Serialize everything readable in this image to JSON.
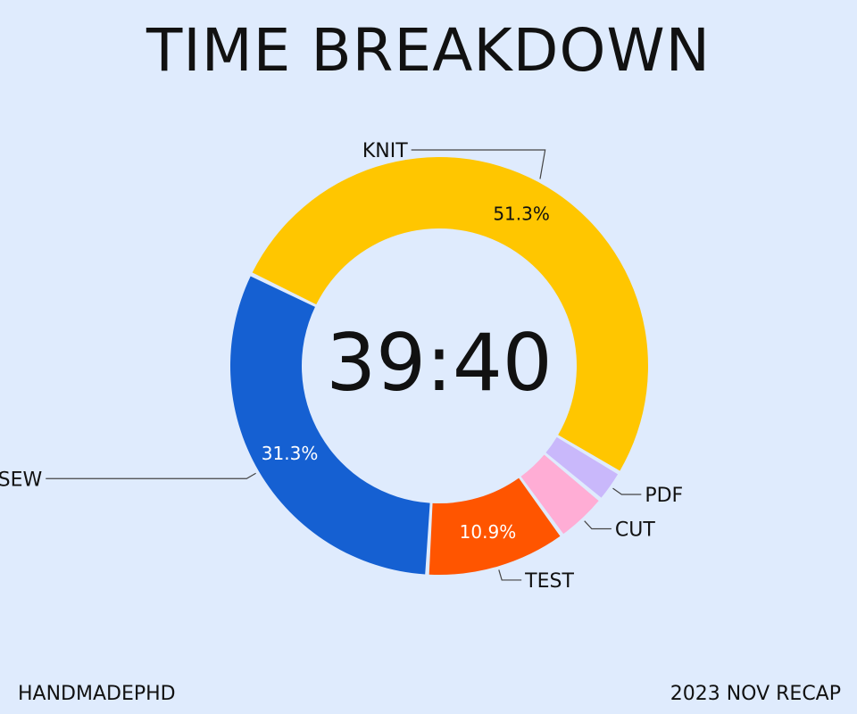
{
  "title": "TIME BREAKDOWN",
  "center_label": "39:40",
  "footer": {
    "left": "HANDMADEPHD",
    "right": "2023 NOV RECAP"
  },
  "chart_data": {
    "type": "pie",
    "style": "donut",
    "title": "TIME BREAKDOWN",
    "categories": [
      "KNIT",
      "PDF",
      "CUT",
      "TEST",
      "SEW"
    ],
    "values": [
      51.3,
      2.5,
      4.0,
      10.9,
      31.3
    ],
    "data_labels": [
      "51.3%",
      "",
      "",
      "10.9%",
      "31.3%"
    ],
    "colors": [
      "#ffc600",
      "#c9b8fb",
      "#ffadd5",
      "#ff5500",
      "#1560d2"
    ],
    "data_label_colors": [
      "#111111",
      "#111111",
      "#111111",
      "#ffffff",
      "#ffffff"
    ]
  }
}
